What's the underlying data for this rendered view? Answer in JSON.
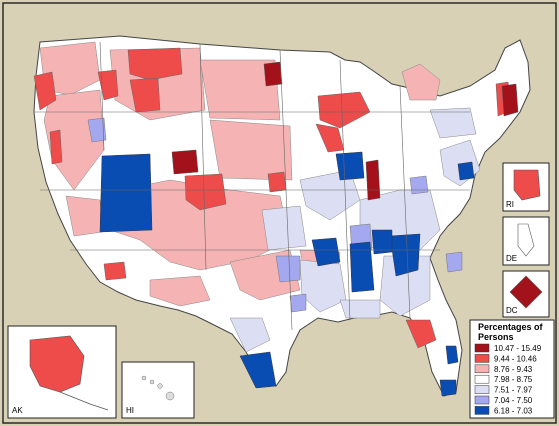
{
  "legend": {
    "title_line1": "Percentages of",
    "title_line2": "Persons",
    "classes": [
      {
        "label": "10.47 - 15.49",
        "color": "#a3111b"
      },
      {
        "label": "9.44 - 10.46",
        "color": "#ee4b4b"
      },
      {
        "label": "8.76 - 9.43",
        "color": "#f6b3b3"
      },
      {
        "label": "7.98 - 8.75",
        "color": "#ffffff"
      },
      {
        "label": "7.51 - 7.97",
        "color": "#dcdff4"
      },
      {
        "label": "7.04 - 7.50",
        "color": "#a4a8ee"
      },
      {
        "label": "6.18 - 7.03",
        "color": "#0a4db2"
      }
    ]
  },
  "insets": {
    "ak": "AK",
    "hi": "HI",
    "ri": "RI",
    "de": "DE",
    "dc": "DC"
  }
}
